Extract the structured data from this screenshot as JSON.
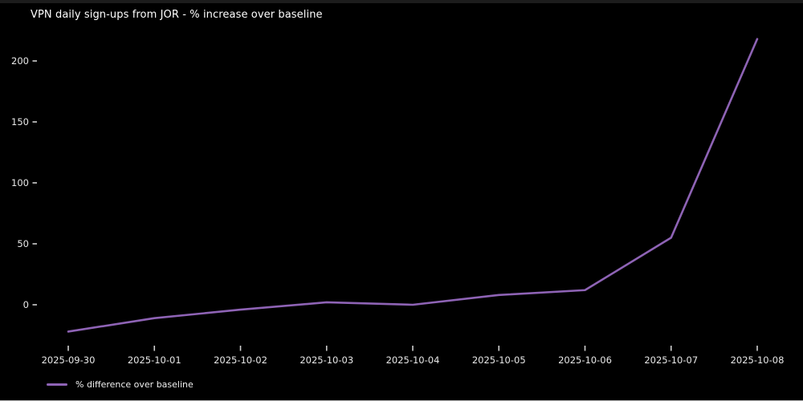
{
  "title": "VPN daily sign-ups from JOR - % increase over baseline",
  "legend": {
    "label": "% difference over baseline"
  },
  "colors": {
    "background": "#000000",
    "title_text": "#ffffff",
    "tick_text": "#e8e8e8",
    "tick_mark": "#cfcfcf",
    "line": "#8e63b5"
  },
  "chart_data": {
    "type": "line",
    "title": "VPN daily sign-ups from JOR - % increase over baseline",
    "categories": [
      "2025-09-30",
      "2025-10-01",
      "2025-10-02",
      "2025-10-03",
      "2025-10-04",
      "2025-10-05",
      "2025-10-06",
      "2025-10-07",
      "2025-10-08"
    ],
    "series": [
      {
        "name": "% difference over baseline",
        "color": "#8e63b5",
        "values": [
          -22,
          -11,
          -4,
          2,
          0,
          8,
          12,
          55,
          218
        ]
      }
    ],
    "xlabel": "",
    "ylabel": "",
    "yticks": [
      0,
      50,
      100,
      150,
      200
    ],
    "ylim": [
      -35,
      235
    ],
    "grid": false,
    "legend_position": "bottom-left",
    "background": "black"
  }
}
